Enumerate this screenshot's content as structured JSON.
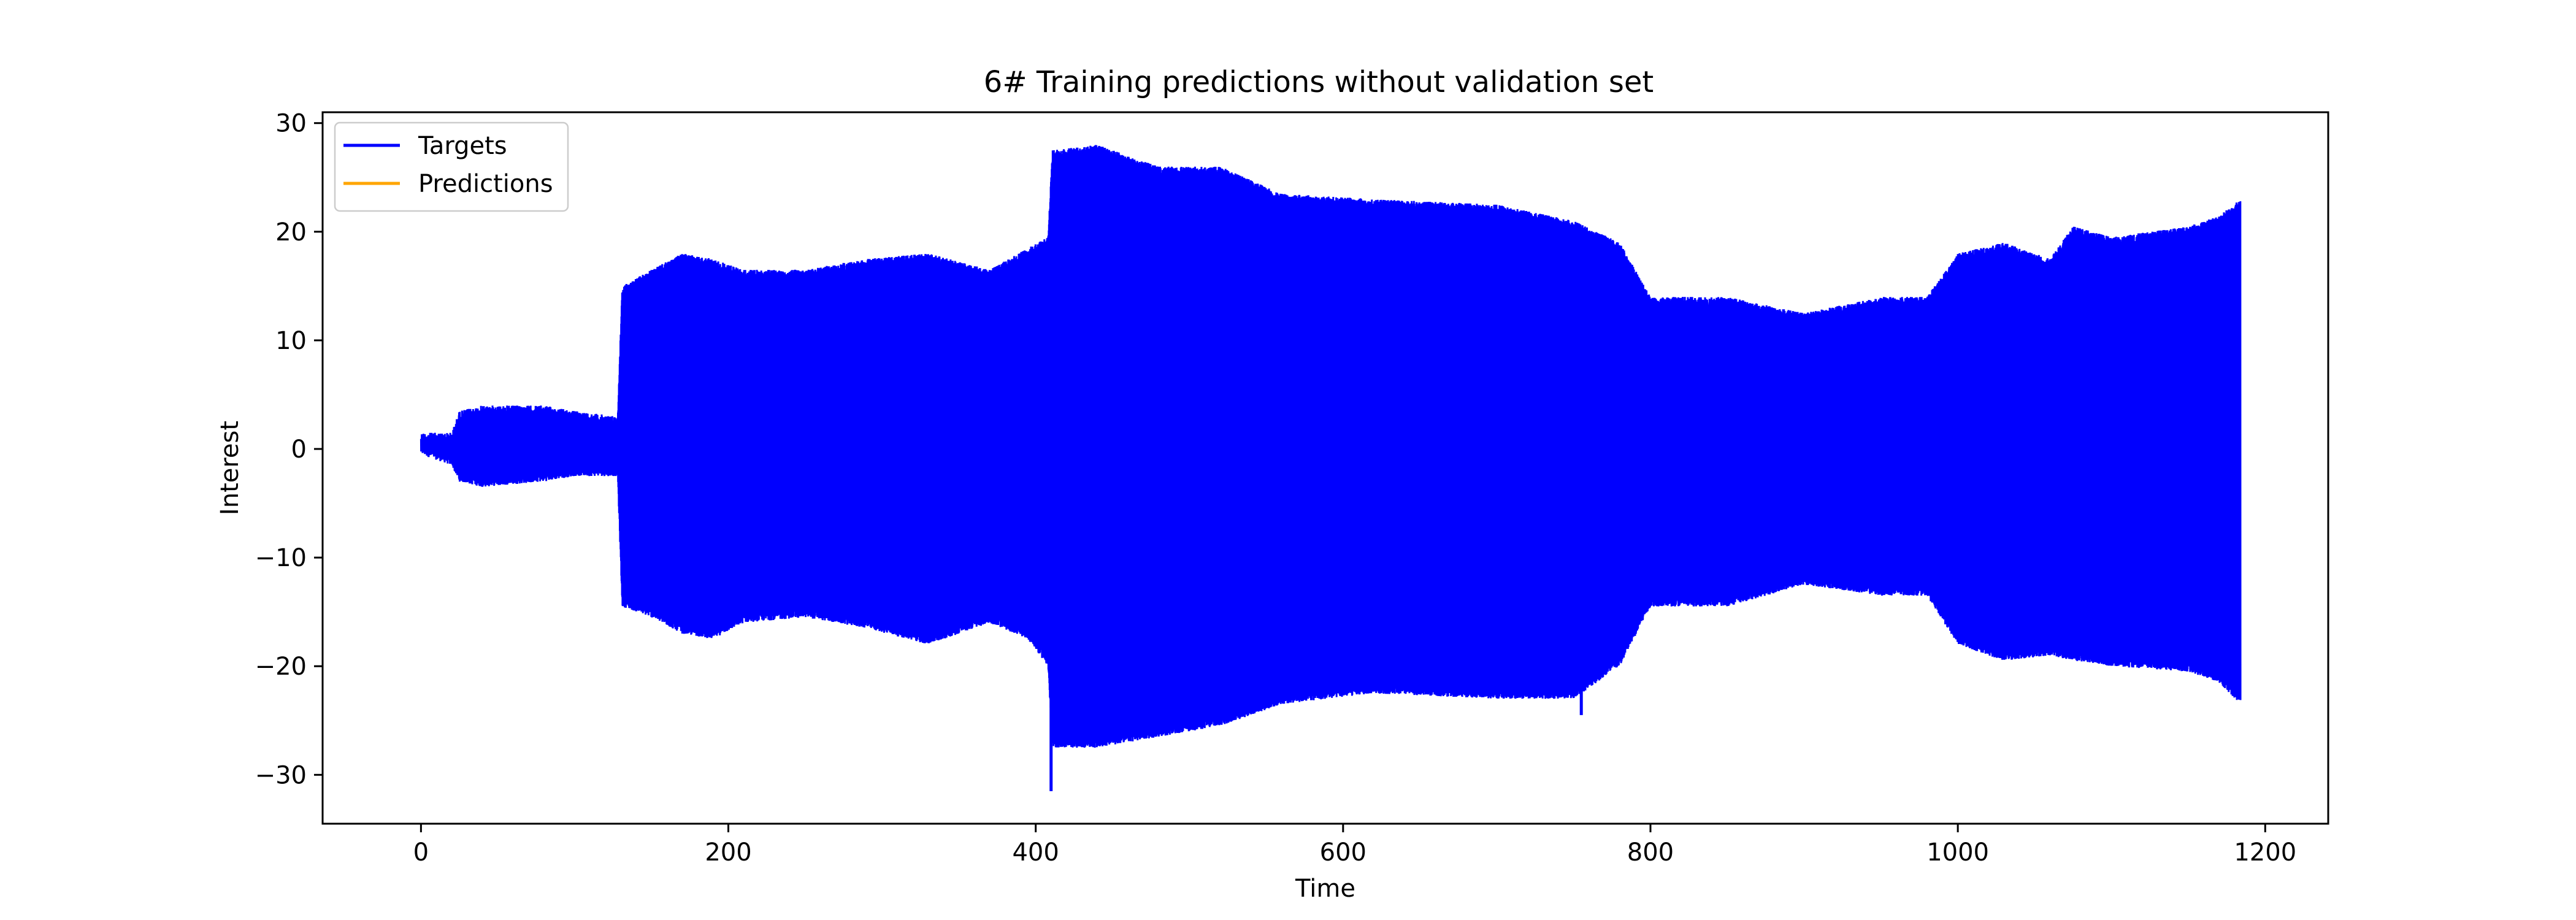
{
  "chart_data": {
    "type": "line",
    "title": "6# Training predictions without validation set",
    "xlabel": "Time",
    "ylabel": "Interest",
    "xlim": [
      -64,
      1241
    ],
    "ylim": [
      -34.5,
      31
    ],
    "x_ticks": [
      0,
      200,
      400,
      600,
      800,
      1000,
      1200
    ],
    "y_ticks": [
      -30,
      -20,
      -10,
      0,
      10,
      20,
      30
    ],
    "x_tick_labels": [
      "0",
      "200",
      "400",
      "600",
      "800",
      "1000",
      "1200"
    ],
    "y_tick_labels": [
      "−30",
      "−20",
      "−10",
      "0",
      "10",
      "20",
      "30"
    ],
    "grid": false,
    "legend_position": "top-left",
    "series": [
      {
        "name": "Targets",
        "color": "#0000ff",
        "style": "rapidly oscillating line filling the envelope",
        "envelope": [
          {
            "x": 0,
            "upper": 1.5,
            "lower": -0.5
          },
          {
            "x": 20,
            "upper": 1.5,
            "lower": -1.5
          },
          {
            "x": 25,
            "upper": 3.5,
            "lower": -3
          },
          {
            "x": 40,
            "upper": 4,
            "lower": -3.5
          },
          {
            "x": 80,
            "upper": 4,
            "lower": -3
          },
          {
            "x": 100,
            "upper": 3.5,
            "lower": -2.5
          },
          {
            "x": 128,
            "upper": 3,
            "lower": -2.5
          },
          {
            "x": 131,
            "upper": 15,
            "lower": -14.5
          },
          {
            "x": 150,
            "upper": 16.5,
            "lower": -15.5
          },
          {
            "x": 170,
            "upper": 18,
            "lower": -17
          },
          {
            "x": 190,
            "upper": 17.5,
            "lower": -17.5
          },
          {
            "x": 210,
            "upper": 16.5,
            "lower": -16
          },
          {
            "x": 250,
            "upper": 16.5,
            "lower": -15.5
          },
          {
            "x": 290,
            "upper": 17.5,
            "lower": -16.5
          },
          {
            "x": 330,
            "upper": 18,
            "lower": -18
          },
          {
            "x": 370,
            "upper": 16.5,
            "lower": -16
          },
          {
            "x": 395,
            "upper": 18.5,
            "lower": -17.5
          },
          {
            "x": 408,
            "upper": 19.5,
            "lower": -20
          },
          {
            "x": 411,
            "upper": 27.5,
            "lower": -27.5
          },
          {
            "x": 440,
            "upper": 28,
            "lower": -27.5
          },
          {
            "x": 480,
            "upper": 26,
            "lower": -26.5
          },
          {
            "x": 520,
            "upper": 26,
            "lower": -25.5
          },
          {
            "x": 560,
            "upper": 23.5,
            "lower": -23.5
          },
          {
            "x": 620,
            "upper": 23,
            "lower": -22.5
          },
          {
            "x": 700,
            "upper": 22.5,
            "lower": -23
          },
          {
            "x": 750,
            "upper": 21,
            "lower": -23
          },
          {
            "x": 780,
            "upper": 19,
            "lower": -20
          },
          {
            "x": 800,
            "upper": 14,
            "lower": -14.5
          },
          {
            "x": 850,
            "upper": 14,
            "lower": -14.5
          },
          {
            "x": 900,
            "upper": 12.5,
            "lower": -12.5
          },
          {
            "x": 950,
            "upper": 14,
            "lower": -13.5
          },
          {
            "x": 980,
            "upper": 14,
            "lower": -13.5
          },
          {
            "x": 1000,
            "upper": 18,
            "lower": -18
          },
          {
            "x": 1030,
            "upper": 19,
            "lower": -19.5
          },
          {
            "x": 1060,
            "upper": 17.5,
            "lower": -19
          },
          {
            "x": 1075,
            "upper": 20.5,
            "lower": -19.5
          },
          {
            "x": 1100,
            "upper": 19.5,
            "lower": -20
          },
          {
            "x": 1150,
            "upper": 20.5,
            "lower": -20.5
          },
          {
            "x": 1170,
            "upper": 21.5,
            "lower": -21.5
          },
          {
            "x": 1184,
            "upper": 23,
            "lower": -23.5
          }
        ],
        "spikes": [
          {
            "x": 410,
            "value": -31.5
          },
          {
            "x": 755,
            "value": -24.5
          }
        ],
        "last_x": 1184
      },
      {
        "name": "Predictions",
        "color": "#ffa500",
        "style": "line (not visible in plotted area)"
      }
    ]
  }
}
